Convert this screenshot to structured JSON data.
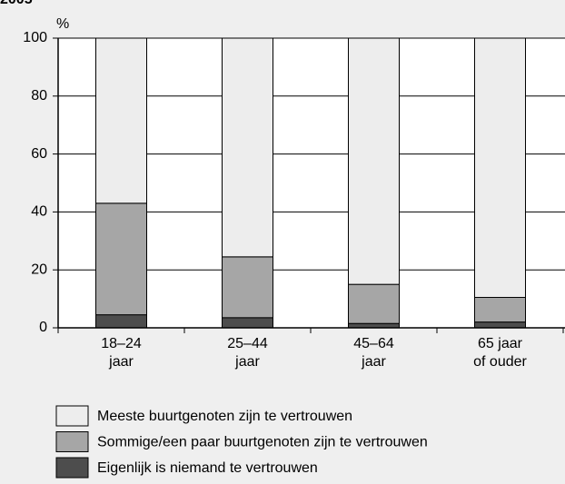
{
  "chart_data": {
    "type": "stacked-bar",
    "subtitle": "2005",
    "ylabel": "%",
    "categories": [
      [
        "18–24",
        "jaar"
      ],
      [
        "25–44",
        "jaar"
      ],
      [
        "45–64",
        "jaar"
      ],
      [
        "65 jaar",
        "of ouder"
      ]
    ],
    "series": [
      {
        "name": "Eigenlijk is niemand te vertrouwen",
        "color": "#4d4d4d",
        "values": [
          4.5,
          3.5,
          1.5,
          2
        ]
      },
      {
        "name": "Sommige/een paar buurtgenoten zijn te vertrouwen",
        "color": "#a6a6a6",
        "values": [
          38.5,
          21,
          13.5,
          8.5
        ]
      },
      {
        "name": "Meeste buurtgenoten zijn te vertrouwen",
        "color": "#ededed",
        "values": [
          57,
          75.5,
          85,
          89.5
        ]
      }
    ],
    "ylim": [
      0,
      100
    ],
    "yticks": [
      0,
      20,
      40,
      60,
      80,
      100
    ],
    "grid": true
  }
}
